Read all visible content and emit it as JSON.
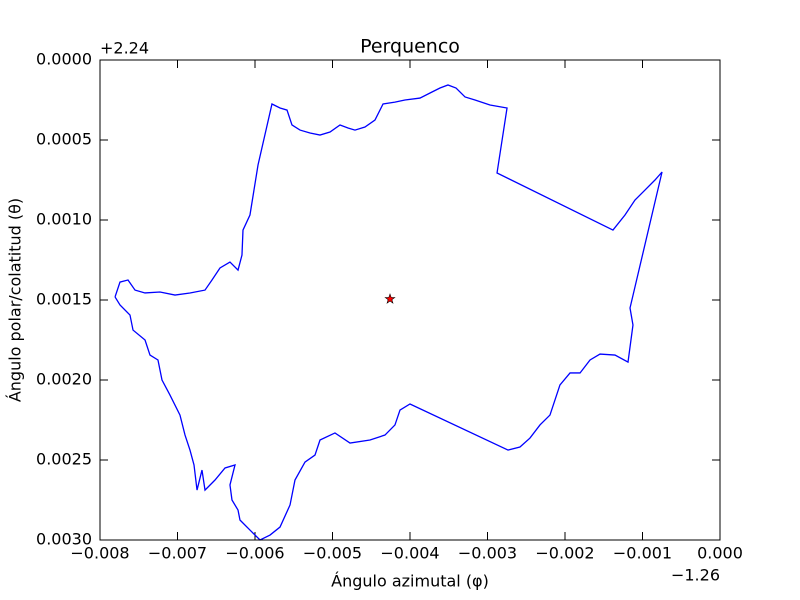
{
  "chart_data": {
    "type": "line",
    "title": "Perquenco",
    "xlabel": "Ángulo azimutal (φ)",
    "ylabel": "Ángulo polar/colatitud (θ)",
    "x_offset_text": "−1.26",
    "y_offset_text": "+2.24",
    "xlim": [
      -0.008,
      0
    ],
    "ylim": [
      0.003,
      0
    ],
    "xticks": [
      {
        "value": -0.008,
        "label": "−0.008"
      },
      {
        "value": -0.007,
        "label": "−0.007"
      },
      {
        "value": -0.006,
        "label": "−0.006"
      },
      {
        "value": -0.005,
        "label": "−0.005"
      },
      {
        "value": -0.004,
        "label": "−0.004"
      },
      {
        "value": -0.003,
        "label": "−0.003"
      },
      {
        "value": -0.002,
        "label": "−0.002"
      },
      {
        "value": -0.001,
        "label": "−0.001"
      },
      {
        "value": 0,
        "label": "0.000"
      }
    ],
    "yticks": [
      {
        "value": 0,
        "label": "0.0000"
      },
      {
        "value": 0.0005,
        "label": "0.0005"
      },
      {
        "value": 0.001,
        "label": "0.0010"
      },
      {
        "value": 0.0015,
        "label": "0.0015"
      },
      {
        "value": 0.002,
        "label": "0.0020"
      },
      {
        "value": 0.0025,
        "label": "0.0025"
      },
      {
        "value": 0.003,
        "label": "0.0030"
      }
    ],
    "series": [
      {
        "color": "#0000ff",
        "x": [
          -0.007806,
          -0.007742,
          -0.007639,
          -0.007548,
          -0.007419,
          -0.007226,
          -0.007032,
          -0.006839,
          -0.006645,
          -0.006555,
          -0.006452,
          -0.006323,
          -0.006219,
          -0.006168,
          -0.006155,
          -0.006065,
          -0.005961,
          -0.005781,
          -0.005677,
          -0.005587,
          -0.005523,
          -0.005419,
          -0.00529,
          -0.005161,
          -0.005032,
          -0.004903,
          -0.0048,
          -0.00471,
          -0.004581,
          -0.004452,
          -0.004348,
          -0.004194,
          -0.004065,
          -0.003871,
          -0.003716,
          -0.003613,
          -0.00351,
          -0.003406,
          -0.00329,
          -0.003161,
          -0.002968,
          -0.002748,
          -0.002877,
          -0.001381,
          -0.001226,
          -0.001097,
          -0.000968,
          -0.000839,
          -0.000748,
          -0.001161,
          -0.001123,
          -0.001187,
          -0.001355,
          -0.001548,
          -0.001677,
          -0.001806,
          -0.001935,
          -0.002065,
          -0.002194,
          -0.002323,
          -0.002452,
          -0.002581,
          -0.002735,
          -0.004,
          -0.004129,
          -0.004194,
          -0.004323,
          -0.004516,
          -0.004774,
          -0.004968,
          -0.005161,
          -0.005226,
          -0.005355,
          -0.005484,
          -0.005548,
          -0.005677,
          -0.005806,
          -0.005935,
          -0.006065,
          -0.006194,
          -0.006219,
          -0.006297,
          -0.006323,
          -0.006258,
          -0.006387,
          -0.006516,
          -0.006645,
          -0.006684,
          -0.006748,
          -0.006787,
          -0.006839,
          -0.006903,
          -0.006968,
          -0.007097,
          -0.0072,
          -0.007252,
          -0.007355,
          -0.007419,
          -0.007574,
          -0.007613,
          -0.007742,
          -0.007806
        ],
        "values": [
          0.001481,
          0.001388,
          0.001375,
          0.001438,
          0.001456,
          0.00145,
          0.001469,
          0.001456,
          0.001438,
          0.001375,
          0.0013,
          0.001263,
          0.001313,
          0.001219,
          0.001063,
          0.000969,
          0.000656,
          0.000275,
          0.0003,
          0.000313,
          0.000406,
          0.000438,
          0.000456,
          0.000469,
          0.00045,
          0.000406,
          0.000425,
          0.000438,
          0.000419,
          0.000375,
          0.000275,
          0.000263,
          0.00025,
          0.000238,
          0.0002,
          0.000175,
          0.000156,
          0.000175,
          0.000231,
          0.00025,
          0.000281,
          0.0003,
          0.000706,
          0.001063,
          0.000969,
          0.000875,
          0.000813,
          0.00075,
          0.0007,
          0.00155,
          0.001656,
          0.001888,
          0.001844,
          0.001838,
          0.001875,
          0.001956,
          0.001956,
          0.002031,
          0.002219,
          0.002281,
          0.002363,
          0.002419,
          0.002438,
          0.00215,
          0.002188,
          0.002281,
          0.002344,
          0.002375,
          0.002394,
          0.002331,
          0.002375,
          0.002469,
          0.002513,
          0.002625,
          0.002781,
          0.002919,
          0.002969,
          0.003,
          0.002938,
          0.002875,
          0.002813,
          0.00275,
          0.002656,
          0.002531,
          0.00255,
          0.002625,
          0.002688,
          0.002563,
          0.002688,
          0.002531,
          0.002438,
          0.002344,
          0.002219,
          0.002094,
          0.002,
          0.001875,
          0.001844,
          0.00175,
          0.001688,
          0.001594,
          0.001531,
          0.001481
        ]
      },
      {
        "color": "#ff0000",
        "marker": "star",
        "x": [
          -0.004258
        ],
        "values": [
          0.001494
        ]
      }
    ]
  }
}
